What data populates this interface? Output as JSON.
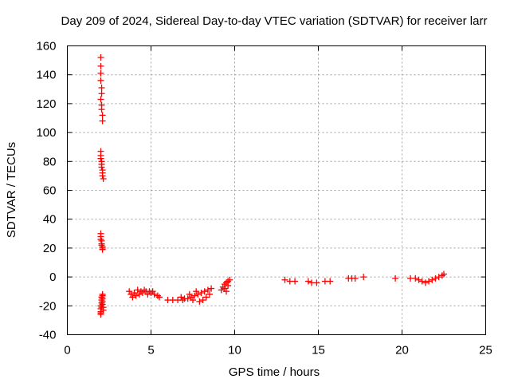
{
  "chart_data": {
    "type": "scatter",
    "title": "Day 209 of 2024, Sidereal Day-to-day VTEC variation (SDTVAR) for receiver larr",
    "xlabel": "GPS time / hours",
    "ylabel": "SDTVAR / TECUs",
    "xlim": [
      0,
      25
    ],
    "ylim": [
      -40,
      160
    ],
    "xticks": [
      "0",
      "5",
      "10",
      "15",
      "20",
      "25"
    ],
    "yticks": [
      "-40",
      "-20",
      "0",
      "20",
      "40",
      "60",
      "80",
      "100",
      "120",
      "140",
      "160"
    ],
    "grid": true,
    "marker": "+",
    "color": "#ff0000",
    "series": [
      {
        "name": "SDTVAR",
        "points": [
          [
            2.0,
            152
          ],
          [
            2.0,
            146
          ],
          [
            2.0,
            141
          ],
          [
            2.0,
            136
          ],
          [
            2.05,
            131
          ],
          [
            2.05,
            127
          ],
          [
            2.0,
            123
          ],
          [
            2.05,
            119
          ],
          [
            2.05,
            116
          ],
          [
            2.1,
            112
          ],
          [
            2.1,
            108
          ],
          [
            2.0,
            87
          ],
          [
            2.0,
            84
          ],
          [
            2.0,
            82
          ],
          [
            2.05,
            80
          ],
          [
            2.05,
            78
          ],
          [
            2.05,
            76
          ],
          [
            2.1,
            74
          ],
          [
            2.1,
            72
          ],
          [
            2.1,
            70
          ],
          [
            2.15,
            68
          ],
          [
            2.0,
            30
          ],
          [
            2.0,
            28
          ],
          [
            2.0,
            26
          ],
          [
            2.05,
            25
          ],
          [
            2.05,
            23
          ],
          [
            2.05,
            22
          ],
          [
            2.1,
            21
          ],
          [
            2.1,
            20
          ],
          [
            2.1,
            19
          ],
          [
            2.0,
            -26
          ],
          [
            2.0,
            -24
          ],
          [
            2.0,
            -22
          ],
          [
            2.0,
            -20
          ],
          [
            2.05,
            -18
          ],
          [
            2.05,
            -16
          ],
          [
            2.05,
            -14
          ],
          [
            2.1,
            -13
          ],
          [
            2.1,
            -15
          ],
          [
            2.1,
            -17
          ],
          [
            2.1,
            -19
          ],
          [
            2.15,
            -21
          ],
          [
            2.15,
            -23
          ],
          [
            2.0,
            -25
          ],
          [
            2.05,
            -21
          ],
          [
            2.1,
            -12
          ],
          [
            3.7,
            -10
          ],
          [
            3.8,
            -12
          ],
          [
            4.0,
            -11
          ],
          [
            4.1,
            -13
          ],
          [
            4.3,
            -12
          ],
          [
            4.5,
            -11
          ],
          [
            4.7,
            -10
          ],
          [
            4.9,
            -10
          ],
          [
            5.0,
            -11
          ],
          [
            5.2,
            -12
          ],
          [
            5.4,
            -13
          ],
          [
            4.2,
            -9
          ],
          [
            4.6,
            -9
          ],
          [
            5.1,
            -10
          ],
          [
            4.4,
            -10
          ],
          [
            4.8,
            -12
          ],
          [
            3.9,
            -14
          ],
          [
            5.5,
            -14
          ],
          [
            6.0,
            -16
          ],
          [
            6.3,
            -16
          ],
          [
            6.6,
            -16
          ],
          [
            6.9,
            -16
          ],
          [
            7.2,
            -15
          ],
          [
            7.4,
            -14
          ],
          [
            7.6,
            -13
          ],
          [
            7.8,
            -12
          ],
          [
            8.0,
            -11
          ],
          [
            8.2,
            -10
          ],
          [
            8.4,
            -9
          ],
          [
            8.6,
            -8
          ],
          [
            7.0,
            -15
          ],
          [
            7.5,
            -16
          ],
          [
            7.9,
            -17
          ],
          [
            8.1,
            -16
          ],
          [
            8.3,
            -14
          ],
          [
            8.5,
            -12
          ],
          [
            7.7,
            -10
          ],
          [
            7.3,
            -12
          ],
          [
            6.8,
            -14
          ],
          [
            9.2,
            -9
          ],
          [
            9.3,
            -7
          ],
          [
            9.4,
            -5
          ],
          [
            9.5,
            -4
          ],
          [
            9.6,
            -3
          ],
          [
            9.7,
            -2
          ],
          [
            9.4,
            -8
          ],
          [
            9.6,
            -6
          ],
          [
            9.5,
            -10
          ],
          [
            13.0,
            -2
          ],
          [
            13.3,
            -3
          ],
          [
            13.6,
            -3
          ],
          [
            14.4,
            -3
          ],
          [
            14.6,
            -4
          ],
          [
            14.9,
            -4
          ],
          [
            15.4,
            -3
          ],
          [
            15.7,
            -3
          ],
          [
            16.8,
            -1
          ],
          [
            17.0,
            -1
          ],
          [
            17.2,
            -1
          ],
          [
            17.7,
            0
          ],
          [
            19.6,
            -1
          ],
          [
            20.5,
            -1
          ],
          [
            20.8,
            -1
          ],
          [
            21.0,
            -2
          ],
          [
            21.2,
            -3
          ],
          [
            21.4,
            -4
          ],
          [
            21.6,
            -3
          ],
          [
            21.8,
            -2
          ],
          [
            22.0,
            -1
          ],
          [
            22.2,
            0
          ],
          [
            22.4,
            1
          ],
          [
            22.5,
            2
          ]
        ]
      }
    ]
  }
}
